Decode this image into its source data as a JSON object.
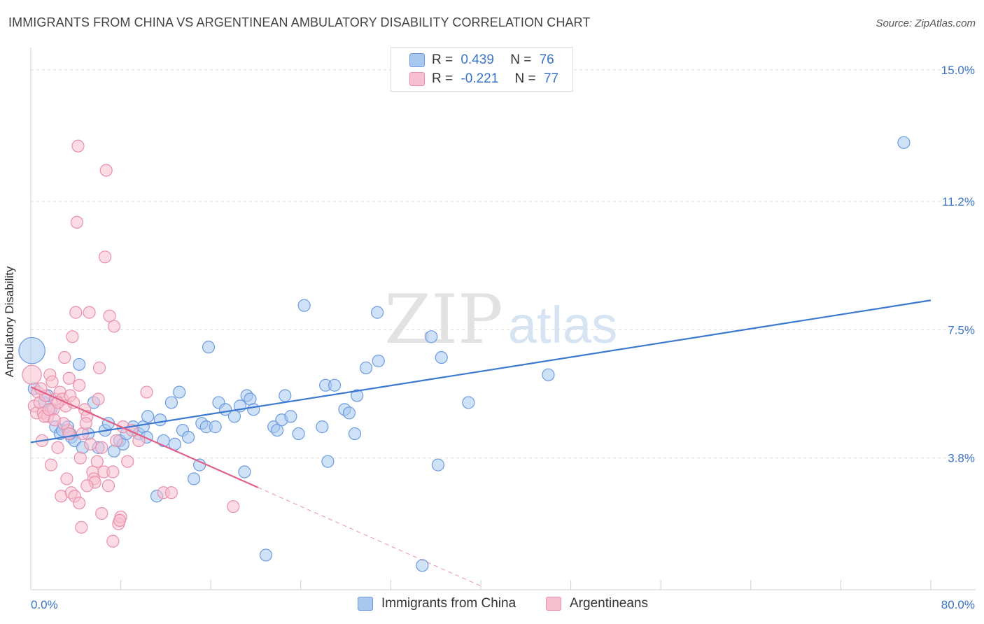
{
  "header": {
    "title": "IMMIGRANTS FROM CHINA VS ARGENTINEAN AMBULATORY DISABILITY CORRELATION CHART",
    "source": "Source: ZipAtlas.com"
  },
  "watermark": {
    "zip": "ZIP",
    "atlas": "atlas"
  },
  "legend": {
    "rows": [
      {
        "r_label": "R =",
        "r_value": "0.439",
        "n_label": "N =",
        "n_value": "76",
        "color": "#a8c8f0",
        "border": "#6d9be0"
      },
      {
        "r_label": "R =",
        "r_value": "-0.221",
        "n_label": "N =",
        "n_value": "77",
        "color": "#f8bfd0",
        "border": "#ea8fab"
      }
    ]
  },
  "bottom_legend": [
    {
      "label": "Immigrants from China",
      "color": "#a8c8f0",
      "border": "#6d9be0"
    },
    {
      "label": "Argentineans",
      "color": "#f8bfd0",
      "border": "#ea8fab"
    }
  ],
  "chart_data": {
    "type": "scatter",
    "title": "IMMIGRANTS FROM CHINA VS ARGENTINEAN AMBULATORY DISABILITY CORRELATION CHART",
    "xlabel": "",
    "ylabel": "Ambulatory Disability",
    "xlim": [
      0,
      80
    ],
    "ylim": [
      0,
      15.5
    ],
    "x_tick_labels": [
      {
        "value": 0,
        "label": "0.0%"
      },
      {
        "value": 80,
        "label": "80.0%"
      }
    ],
    "y_tick_labels": [
      {
        "value": 3.8,
        "label": "3.8%"
      },
      {
        "value": 7.5,
        "label": "7.5%"
      },
      {
        "value": 11.2,
        "label": "11.2%"
      },
      {
        "value": 15.0,
        "label": "15.0%"
      }
    ],
    "x_minor_ticks": [
      0,
      8,
      16,
      24,
      32,
      40,
      48,
      56,
      64,
      72,
      80
    ],
    "grid": true,
    "legend_position": "top-center",
    "colors": {
      "china": "#3b78d0",
      "argentina": "#e0608a",
      "china_fill": "#a8c8f0",
      "argentina_fill": "#f8bfd0"
    },
    "series": [
      {
        "name": "Immigrants from China",
        "trend": {
          "x": [
            0,
            80
          ],
          "y": [
            4.25,
            8.35
          ]
        },
        "points": [
          [
            0.1,
            6.9,
            2.2
          ],
          [
            0.3,
            5.8,
            1
          ],
          [
            1.2,
            5.4,
            1
          ],
          [
            1.5,
            5.6,
            1
          ],
          [
            1.8,
            5.2,
            1
          ],
          [
            2.2,
            4.7,
            1
          ],
          [
            2.6,
            4.5,
            1
          ],
          [
            2.8,
            4.6,
            1
          ],
          [
            3.3,
            4.7,
            1
          ],
          [
            3.6,
            4.4,
            1
          ],
          [
            3.9,
            4.3,
            1
          ],
          [
            4.3,
            6.5,
            1
          ],
          [
            4.6,
            4.1,
            1
          ],
          [
            5.1,
            4.5,
            1
          ],
          [
            5.6,
            5.4,
            1
          ],
          [
            6.0,
            4.1,
            1
          ],
          [
            6.6,
            4.6,
            1
          ],
          [
            6.9,
            4.8,
            1
          ],
          [
            7.4,
            4.0,
            1
          ],
          [
            7.9,
            4.3,
            1
          ],
          [
            8.2,
            4.2,
            1
          ],
          [
            8.5,
            4.5,
            1
          ],
          [
            9.1,
            4.7,
            1
          ],
          [
            9.6,
            4.5,
            1
          ],
          [
            10.0,
            4.7,
            1
          ],
          [
            10.3,
            4.4,
            1
          ],
          [
            10.4,
            5.0,
            1
          ],
          [
            11.2,
            2.7,
            1
          ],
          [
            11.5,
            4.9,
            1
          ],
          [
            11.8,
            4.3,
            1
          ],
          [
            12.5,
            5.4,
            1
          ],
          [
            12.8,
            4.2,
            1
          ],
          [
            13.2,
            5.7,
            1
          ],
          [
            13.5,
            4.6,
            1
          ],
          [
            14.0,
            4.4,
            1
          ],
          [
            14.5,
            3.2,
            1
          ],
          [
            15.0,
            3.6,
            1
          ],
          [
            15.2,
            4.8,
            1
          ],
          [
            15.6,
            4.7,
            1
          ],
          [
            15.8,
            7.0,
            1
          ],
          [
            16.4,
            4.7,
            1
          ],
          [
            16.7,
            5.4,
            1
          ],
          [
            17.3,
            5.2,
            1
          ],
          [
            18.1,
            5.0,
            1
          ],
          [
            18.6,
            5.3,
            1
          ],
          [
            19.0,
            3.4,
            1
          ],
          [
            19.2,
            5.6,
            1
          ],
          [
            19.5,
            5.5,
            1
          ],
          [
            19.8,
            5.2,
            1
          ],
          [
            20.9,
            1.0,
            1
          ],
          [
            21.6,
            4.7,
            1
          ],
          [
            21.9,
            4.6,
            1
          ],
          [
            22.3,
            4.9,
            1
          ],
          [
            22.6,
            5.6,
            1
          ],
          [
            23.1,
            5.0,
            1
          ],
          [
            23.8,
            4.5,
            1
          ],
          [
            24.3,
            8.2,
            1
          ],
          [
            25.9,
            4.7,
            1
          ],
          [
            26.2,
            5.9,
            1
          ],
          [
            26.4,
            3.7,
            1
          ],
          [
            27.0,
            5.9,
            1
          ],
          [
            27.9,
            5.2,
            1
          ],
          [
            28.3,
            5.1,
            1
          ],
          [
            28.8,
            4.5,
            1
          ],
          [
            29.0,
            5.6,
            1
          ],
          [
            29.8,
            6.4,
            1
          ],
          [
            30.8,
            8.0,
            1
          ],
          [
            30.9,
            6.6,
            1
          ],
          [
            35.6,
            7.3,
            1
          ],
          [
            36.2,
            3.6,
            1
          ],
          [
            36.5,
            6.7,
            1
          ],
          [
            38.9,
            5.4,
            1
          ],
          [
            46.0,
            6.2,
            1
          ],
          [
            77.6,
            12.9,
            1
          ],
          [
            34.8,
            0.7,
            1
          ],
          [
            3.5,
            4.5,
            1
          ]
        ]
      },
      {
        "name": "Argentineans",
        "trend": {
          "x": [
            0,
            20.2
          ],
          "y": [
            5.85,
            2.95
          ]
        },
        "trend_extension": {
          "x": [
            20.2,
            40.2
          ],
          "y": [
            2.95,
            0.08
          ]
        },
        "points": [
          [
            0.1,
            6.2,
            1.6
          ],
          [
            0.3,
            5.3,
            1
          ],
          [
            0.5,
            5.1,
            1
          ],
          [
            0.6,
            5.7,
            1
          ],
          [
            0.8,
            5.4,
            1
          ],
          [
            1.0,
            4.3,
            1
          ],
          [
            1.1,
            5.1,
            1
          ],
          [
            1.3,
            5.6,
            1
          ],
          [
            1.5,
            5.0,
            1
          ],
          [
            1.7,
            6.2,
            1
          ],
          [
            1.9,
            6.0,
            1
          ],
          [
            1.8,
            3.6,
            1
          ],
          [
            2.0,
            5.2,
            1
          ],
          [
            2.2,
            5.5,
            1
          ],
          [
            2.4,
            4.1,
            1
          ],
          [
            2.6,
            5.7,
            1
          ],
          [
            2.7,
            2.7,
            1
          ],
          [
            2.8,
            5.5,
            1
          ],
          [
            3.0,
            6.7,
            1
          ],
          [
            3.1,
            5.3,
            1
          ],
          [
            3.3,
            4.6,
            1
          ],
          [
            3.4,
            6.1,
            1
          ],
          [
            3.5,
            5.6,
            1
          ],
          [
            3.6,
            2.8,
            1
          ],
          [
            3.8,
            5.4,
            1
          ],
          [
            3.9,
            2.7,
            1
          ],
          [
            3.7,
            7.3,
            1
          ],
          [
            4.0,
            8.0,
            1
          ],
          [
            4.2,
            12.8,
            1
          ],
          [
            4.3,
            2.5,
            1
          ],
          [
            4.4,
            3.8,
            1
          ],
          [
            4.5,
            1.8,
            1
          ],
          [
            4.3,
            5.9,
            1
          ],
          [
            4.6,
            4.5,
            1
          ],
          [
            4.8,
            5.2,
            1
          ],
          [
            5.0,
            5.0,
            1
          ],
          [
            5.2,
            8.0,
            1
          ],
          [
            4.1,
            10.6,
            1
          ],
          [
            5.3,
            4.2,
            1
          ],
          [
            5.5,
            3.4,
            1
          ],
          [
            5.6,
            3.2,
            1
          ],
          [
            5.7,
            3.1,
            1
          ],
          [
            5.9,
            3.7,
            1
          ],
          [
            6.0,
            5.5,
            1
          ],
          [
            6.1,
            6.4,
            1
          ],
          [
            6.3,
            4.1,
            1
          ],
          [
            6.5,
            3.4,
            1
          ],
          [
            6.6,
            9.6,
            1
          ],
          [
            6.7,
            12.1,
            1
          ],
          [
            7.0,
            7.9,
            1
          ],
          [
            7.3,
            3.4,
            1
          ],
          [
            7.4,
            7.6,
            1
          ],
          [
            7.6,
            4.3,
            1
          ],
          [
            7.8,
            1.9,
            1
          ],
          [
            8.0,
            2.1,
            1
          ],
          [
            8.2,
            4.7,
            1
          ],
          [
            7.3,
            1.4,
            1
          ],
          [
            8.6,
            3.7,
            1
          ],
          [
            9.0,
            4.6,
            1
          ],
          [
            9.6,
            4.3,
            1
          ],
          [
            10.3,
            5.7,
            1
          ],
          [
            11.8,
            2.8,
            1
          ],
          [
            12.5,
            2.8,
            1
          ],
          [
            18.0,
            2.4,
            1
          ],
          [
            6.9,
            3.0,
            1
          ],
          [
            3.4,
            4.5,
            1
          ],
          [
            2.4,
            5.4,
            1
          ],
          [
            1.2,
            5.0,
            1
          ],
          [
            0.9,
            5.8,
            1
          ],
          [
            5.0,
            3.0,
            1
          ],
          [
            6.3,
            2.2,
            1
          ],
          [
            4.9,
            4.8,
            1
          ],
          [
            2.9,
            4.8,
            1
          ],
          [
            1.6,
            5.2,
            1
          ],
          [
            2.1,
            4.9,
            1
          ],
          [
            3.2,
            3.2,
            1
          ],
          [
            7.9,
            2.0,
            1
          ]
        ]
      }
    ]
  }
}
